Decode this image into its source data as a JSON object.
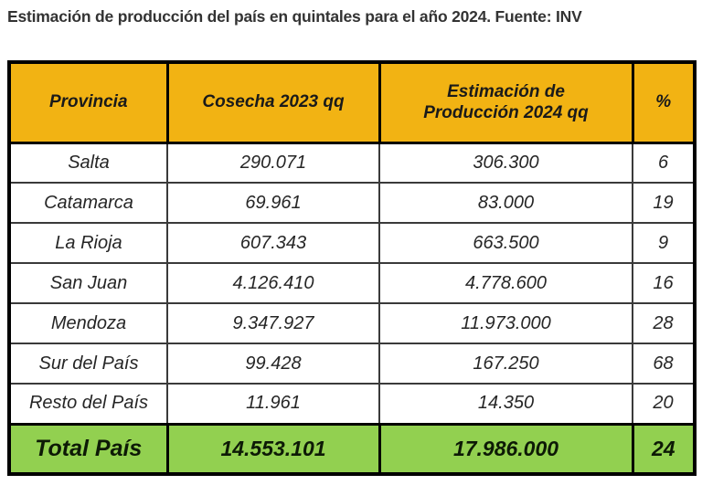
{
  "page": {
    "title": "Estimación de producción del país en quintales para el año 2024. Fuente: INV"
  },
  "table": {
    "columns": [
      "Provincia",
      "Cosecha 2023 qq",
      "Estimación de Producción 2024 qq",
      "%"
    ],
    "rows": [
      {
        "provincia": "Salta",
        "cosecha_2023": "290.071",
        "estimacion_2024": "306.300",
        "pct": "6"
      },
      {
        "provincia": "Catamarca",
        "cosecha_2023": "69.961",
        "estimacion_2024": "83.000",
        "pct": "19"
      },
      {
        "provincia": "La Rioja",
        "cosecha_2023": "607.343",
        "estimacion_2024": "663.500",
        "pct": "9"
      },
      {
        "provincia": "San Juan",
        "cosecha_2023": "4.126.410",
        "estimacion_2024": "4.778.600",
        "pct": "16"
      },
      {
        "provincia": "Mendoza",
        "cosecha_2023": "9.347.927",
        "estimacion_2024": "11.973.000",
        "pct": "28"
      },
      {
        "provincia": "Sur del País",
        "cosecha_2023": "99.428",
        "estimacion_2024": "167.250",
        "pct": "68"
      },
      {
        "provincia": "Resto del País",
        "cosecha_2023": "11.961",
        "estimacion_2024": "14.350",
        "pct": "20"
      }
    ],
    "total": {
      "provincia": "Total País",
      "cosecha_2023": "14.553.101",
      "estimacion_2024": "17.986.000",
      "pct": "24"
    },
    "colors": {
      "header_bg": "#F2B313",
      "total_bg": "#92D050",
      "border": "#000000",
      "row_text": "#262626"
    }
  },
  "chart_data": {
    "type": "table",
    "title": "Estimación de producción del país en quintales para el año 2024. Fuente: INV",
    "categories": [
      "Salta",
      "Catamarca",
      "La Rioja",
      "San Juan",
      "Mendoza",
      "Sur del País",
      "Resto del País",
      "Total País"
    ],
    "series": [
      {
        "name": "Cosecha 2023 qq",
        "values": [
          290071,
          69961,
          607343,
          4126410,
          9347927,
          99428,
          11961,
          14553101
        ]
      },
      {
        "name": "Estimación de Producción 2024 qq",
        "values": [
          306300,
          83000,
          663500,
          4778600,
          11973000,
          167250,
          14350,
          17986000
        ]
      },
      {
        "name": "%",
        "values": [
          6,
          19,
          9,
          16,
          28,
          68,
          20,
          24
        ]
      }
    ]
  }
}
